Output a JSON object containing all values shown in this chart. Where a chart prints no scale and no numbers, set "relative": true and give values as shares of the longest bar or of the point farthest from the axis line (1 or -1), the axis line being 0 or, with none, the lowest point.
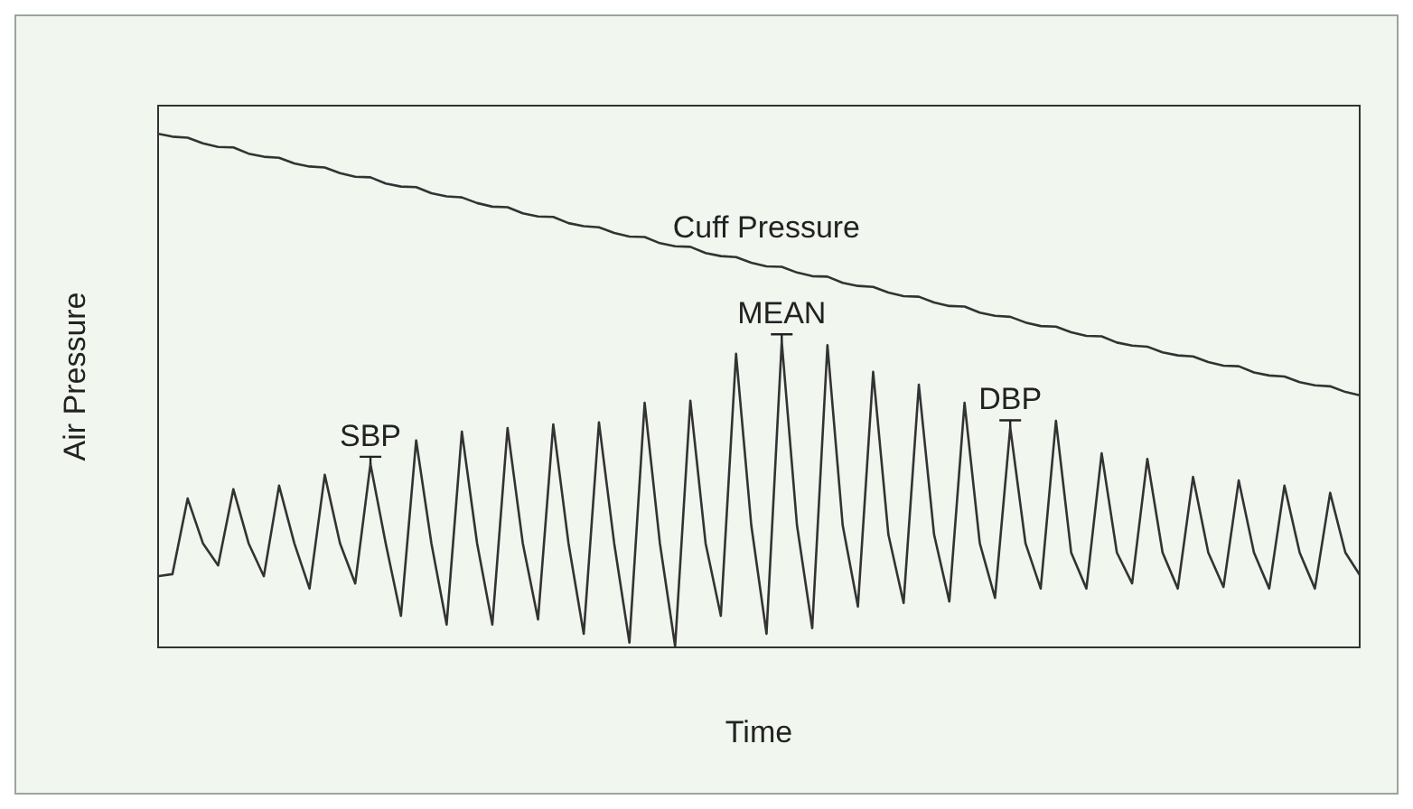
{
  "chart_data": {
    "type": "line",
    "relative": true,
    "xlabel": "Time",
    "ylabel": "Air Pressure",
    "categories": [
      null,
      null,
      null,
      null,
      null,
      null,
      null,
      null,
      null,
      null,
      null,
      null,
      null,
      null,
      null,
      null,
      null,
      null,
      null,
      null,
      null,
      null,
      null,
      null,
      null,
      null,
      null,
      null,
      null,
      null,
      null,
      null,
      null,
      null,
      null,
      null,
      null,
      null,
      null,
      null,
      null,
      null,
      null,
      null,
      null,
      null,
      null,
      null,
      null,
      null,
      null,
      null,
      null,
      null,
      null,
      null,
      null,
      null,
      null,
      null,
      null,
      null,
      null,
      null,
      null,
      null,
      null,
      null,
      null,
      null,
      null,
      null,
      null,
      null,
      null,
      null,
      null,
      null,
      null,
      null
    ],
    "series": [
      {
        "name": "Cuff Pressure",
        "color": "#333333",
        "values": [
          1.0,
          0.994,
          0.992,
          0.981,
          0.974,
          0.973,
          0.961,
          0.955,
          0.953,
          0.942,
          0.936,
          0.934,
          0.923,
          0.916,
          0.915,
          0.903,
          0.897,
          0.896,
          0.884,
          0.878,
          0.876,
          0.865,
          0.858,
          0.857,
          0.845,
          0.839,
          0.838,
          0.826,
          0.82,
          0.818,
          0.807,
          0.8,
          0.799,
          0.787,
          0.781,
          0.78,
          0.768,
          0.762,
          0.76,
          0.749,
          0.742,
          0.741,
          0.73,
          0.723,
          0.722,
          0.71,
          0.704,
          0.702,
          0.691,
          0.684,
          0.683,
          0.672,
          0.665,
          0.664,
          0.652,
          0.646,
          0.644,
          0.633,
          0.626,
          0.625,
          0.614,
          0.607,
          0.606,
          0.594,
          0.588,
          0.586,
          0.575,
          0.569,
          0.567,
          0.556,
          0.549,
          0.548,
          0.536,
          0.53,
          0.528,
          0.517,
          0.511,
          0.509,
          0.498,
          0.491
        ]
      },
      {
        "color": "#333333",
        "values": [
          0.14,
          0.144,
          0.291,
          0.204,
          0.161,
          0.309,
          0.204,
          0.14,
          0.316,
          0.204,
          0.116,
          0.337,
          0.204,
          0.126,
          0.358,
          0.204,
          0.063,
          0.404,
          0.204,
          0.046,
          0.421,
          0.204,
          0.046,
          0.428,
          0.204,
          0.056,
          0.435,
          0.204,
          0.028,
          0.439,
          0.204,
          0.011,
          0.477,
          0.204,
          0.004,
          0.481,
          0.204,
          0.063,
          0.572,
          0.239,
          0.028,
          0.596,
          0.239,
          0.039,
          0.589,
          0.239,
          0.081,
          0.537,
          0.221,
          0.088,
          0.512,
          0.221,
          0.091,
          0.477,
          0.204,
          0.098,
          0.429,
          0.204,
          0.116,
          0.442,
          0.186,
          0.116,
          0.379,
          0.186,
          0.126,
          0.368,
          0.186,
          0.116,
          0.333,
          0.186,
          0.119,
          0.326,
          0.186,
          0.116,
          0.316,
          0.186,
          0.116,
          0.302,
          0.186,
          0.14
        ]
      }
    ],
    "annotations": [
      {
        "text": "SBP",
        "y": 0.358
      },
      {
        "text": "MEAN",
        "y": 0.596
      },
      {
        "text": "DBP",
        "y": 0.429
      }
    ]
  }
}
